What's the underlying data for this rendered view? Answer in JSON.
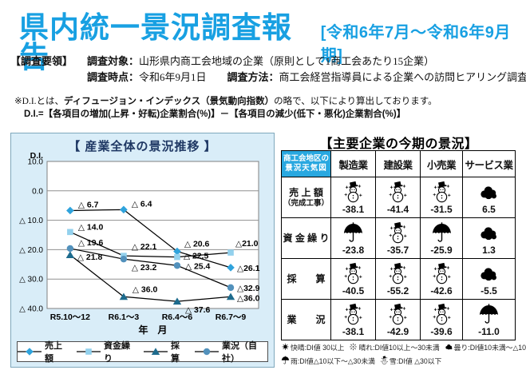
{
  "header": {
    "title": "県内統一景況調査報告",
    "period": "[令和6年7月～令和6年9月期]"
  },
  "survey": {
    "section_label": "【調査要領】",
    "target_label": "調査対象：",
    "target_value": "山形県内商工会地域の企業（原則として1商工会あたり15企業）",
    "time_label": "調査時点：",
    "time_value": "令和6年9月1日",
    "method_label": "調査方法：",
    "method_value": "商工会経営指導員による企業への訪問ヒアリング調査"
  },
  "di_note": {
    "line1_prefix": "※D.I.とは、",
    "line1_bold": "ディフュージョン・インデックス（景気動向指数）",
    "line1_suffix": "の略で、以下により算出しております。",
    "line2": "D.I.=【各項目の増加(上昇・好転)企業割合(%)】－【各項目の減少(低下・悪化)企業割合(%)】"
  },
  "chart_data": {
    "type": "line",
    "title": "【 産業全体の景況推移 】",
    "ylabel": "D.I.",
    "xlabel": "年　月",
    "ylim": [
      -40,
      10
    ],
    "yticks": [
      10,
      0,
      -10,
      -20,
      -30,
      -40
    ],
    "categories": [
      "R5.10～12",
      "R6.1～3",
      "R6.4～6",
      "R6.7～9"
    ],
    "grid": "horizontal",
    "legend_position": "bottom",
    "series": [
      {
        "name": "売上額",
        "marker": "diamond",
        "color": "#2FA3DC",
        "values": [
          -6.7,
          -6.4,
          -20.6,
          -26.1
        ]
      },
      {
        "name": "資金繰り",
        "marker": "square",
        "color": "#93D1ED",
        "values": [
          -14.0,
          -22.1,
          -22.5,
          -21.0
        ]
      },
      {
        "name": "採算",
        "marker": "triangle",
        "color": "#1D6B8D",
        "values": [
          -21.8,
          -36.0,
          -37.6,
          -36.0
        ]
      },
      {
        "name": "業況（自社）",
        "marker": "circle",
        "color": "#5291BC",
        "values": [
          -19.6,
          -23.2,
          -25.4,
          -32.9
        ]
      }
    ]
  },
  "weather": {
    "title": "【主要企業の今期の景況】",
    "corner_line1": "商工会地区の",
    "corner_line2": "景況天気図",
    "columns": [
      "製造業",
      "建設業",
      "小売業",
      "サービス業"
    ],
    "rows": [
      {
        "label": "売 上 額",
        "label2": "（完成工事）",
        "cells": [
          {
            "icon": "snowman-icon",
            "value": "-38.1"
          },
          {
            "icon": "snowman-icon",
            "value": "-41.4"
          },
          {
            "icon": "snowman-icon",
            "value": "-31.5"
          },
          {
            "icon": "cloud-icon",
            "value": "6.5"
          }
        ]
      },
      {
        "label": "資 金 繰 り",
        "cells": [
          {
            "icon": "umbrella-icon",
            "value": "-23.8"
          },
          {
            "icon": "snowman-icon",
            "value": "-35.7"
          },
          {
            "icon": "umbrella-icon",
            "value": "-25.9"
          },
          {
            "icon": "cloud-icon",
            "value": "1.3"
          }
        ]
      },
      {
        "label": "採　　算",
        "cells": [
          {
            "icon": "snowman-icon",
            "value": "-40.5"
          },
          {
            "icon": "snowman-icon",
            "value": "-55.2"
          },
          {
            "icon": "snowman-icon",
            "value": "-42.6"
          },
          {
            "icon": "cloud-icon",
            "value": "-5.5"
          }
        ]
      },
      {
        "label": "業　　況",
        "cells": [
          {
            "icon": "snowman-icon",
            "value": "-38.1"
          },
          {
            "icon": "snowman-icon",
            "value": "-42.9"
          },
          {
            "icon": "snowman-icon",
            "value": "-39.6"
          },
          {
            "icon": "umbrella-icon",
            "value": "-11.0"
          }
        ]
      }
    ],
    "legend": [
      {
        "icon": "sun-icon",
        "text": "快晴:DI値 30以上"
      },
      {
        "icon": "sunny-icon",
        "text": "晴れ:DI値10以上～30未満"
      },
      {
        "icon": "cloud-icon",
        "text": "曇り:DI値10未満～△10未満"
      },
      {
        "icon": "umbrella-icon",
        "text": "雨:DI値△10以下～△30未満"
      },
      {
        "icon": "snowman-icon",
        "text": "雪:DI値 △30以下"
      }
    ]
  }
}
